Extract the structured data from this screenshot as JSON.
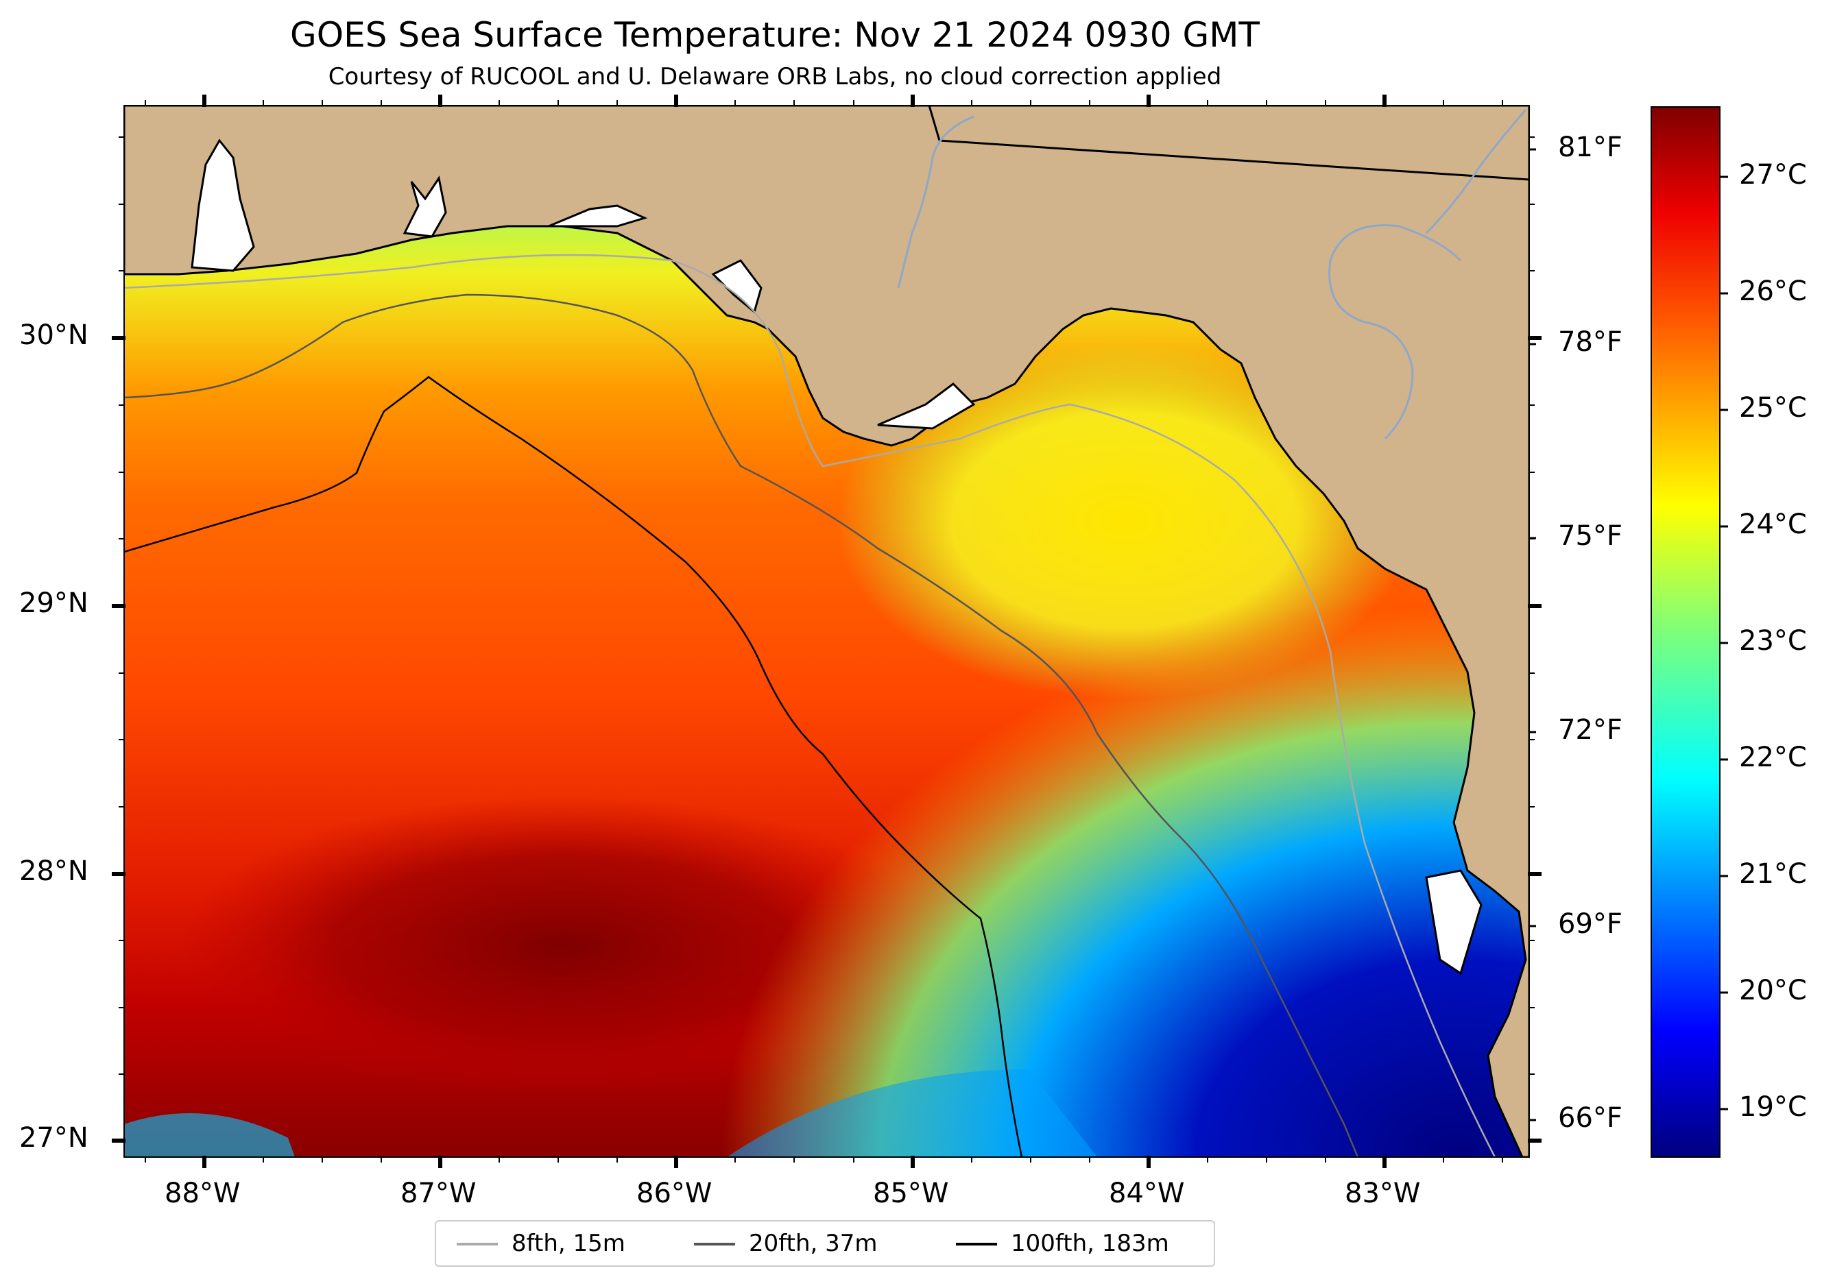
{
  "title": "GOES Sea Surface Temperature: Nov 21 2024 0930 GMT",
  "subtitle": "Courtesy of RUCOOL and U. Delaware ORB Labs, no cloud correction applied",
  "lat_labels": [
    "30°N",
    "29°N",
    "28°N",
    "27°N"
  ],
  "lon_labels": [
    "88°W",
    "87°W",
    "86°W",
    "85°W",
    "84°W",
    "83°W"
  ],
  "fahrenheit_labels": [
    "81°F",
    "78°F",
    "75°F",
    "72°F",
    "69°F",
    "66°F"
  ],
  "celsius_labels": [
    "27°C",
    "26°C",
    "25°C",
    "24°C",
    "23°C",
    "22°C",
    "21°C",
    "20°C",
    "19°C"
  ],
  "legend": [
    {
      "label": "8fth, 15m",
      "color": "#aaaaaa"
    },
    {
      "label": "20fth, 37m",
      "color": "#555555"
    },
    {
      "label": "100fth, 183m",
      "color": "#000000"
    }
  ],
  "colors": {
    "land": "#d2b48c",
    "colormap": "jet",
    "coastline": "#000000",
    "rivers": "#8fa8c8"
  },
  "colorbar_range_c": [
    18.6,
    27.6
  ]
}
